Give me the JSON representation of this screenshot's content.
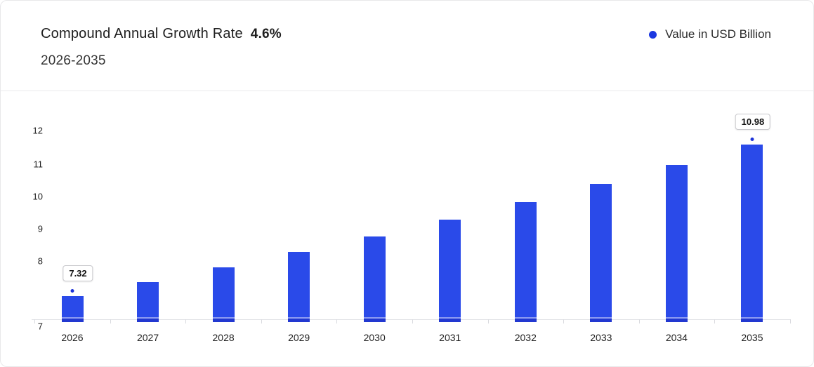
{
  "header": {
    "title": "Compound Annual Growth Rate",
    "cagr_value": "4.6%",
    "period": "2026-2035"
  },
  "legend": {
    "label": "Value in USD Billion",
    "marker_color": "#1b38e0"
  },
  "chart_data": {
    "type": "bar",
    "title": "Compound Annual Growth Rate 4.6% 2026-2035",
    "xlabel": "",
    "ylabel": "Value in USD Billion",
    "categories": [
      "2026",
      "2027",
      "2028",
      "2029",
      "2030",
      "2031",
      "2032",
      "2033",
      "2034",
      "2035"
    ],
    "series": [
      {
        "name": "Value in USD Billion",
        "values": [
          7.32,
          7.66,
          8.01,
          8.38,
          8.76,
          9.17,
          9.59,
          10.03,
          10.49,
          10.98
        ]
      }
    ],
    "point_labels": [
      {
        "category": "2026",
        "text": "7.32"
      },
      {
        "category": "2035",
        "text": "10.98"
      }
    ],
    "ylim": [
      7,
      12
    ],
    "yticks": [
      "12",
      "11",
      "10",
      "9",
      "8",
      "7"
    ],
    "grid": false,
    "legend_position": "top-right",
    "bar_color": "#2a4ae9",
    "bar_base_color": "#2238d0",
    "marker_color": "#1c33d8"
  }
}
